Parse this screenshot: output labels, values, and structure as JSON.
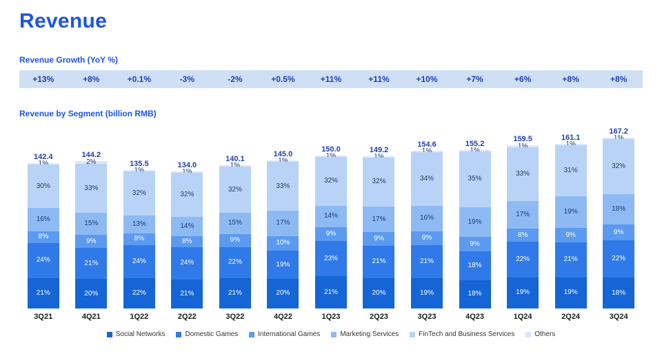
{
  "page": {
    "title": "Revenue"
  },
  "sections": {
    "growth": {
      "heading": "Revenue Growth (YoY %)"
    },
    "segment": {
      "heading": "Revenue by Segment (billion RMB)"
    }
  },
  "colors": {
    "accent_blue": "#1d53e6",
    "growth_banner_bg": "#cfe0f6",
    "growth_text": "#1c3fc0",
    "total_label": "#1e3fae"
  },
  "chart_data": {
    "type": "bar",
    "stacked": true,
    "title": "Revenue by Segment (billion RMB)",
    "unit_totals": "billion RMB",
    "unit_segments": "%",
    "grid": false,
    "legend_position": "bottom",
    "categories": [
      "3Q21",
      "4Q21",
      "1Q22",
      "2Q22",
      "3Q22",
      "4Q22",
      "1Q23",
      "2Q23",
      "3Q23",
      "4Q23",
      "1Q24",
      "2Q24",
      "3Q24"
    ],
    "totals": [
      142.4,
      144.2,
      135.5,
      134.0,
      140.1,
      145.0,
      150.0,
      149.2,
      154.6,
      155.2,
      159.5,
      161.1,
      167.2
    ],
    "growth_yoy": [
      "+13%",
      "+8%",
      "+0.1%",
      "-3%",
      "-2%",
      "+0.5%",
      "+11%",
      "+11%",
      "+10%",
      "+7%",
      "+6%",
      "+8%",
      "+8%"
    ],
    "series": [
      {
        "name": "Social Networks",
        "color": "#1565d6",
        "label_color": "#ffffff",
        "values_pct": [
          21,
          20,
          22,
          21,
          21,
          20,
          21,
          20,
          19,
          18,
          19,
          19,
          18
        ]
      },
      {
        "name": "Domestic Games",
        "color": "#2f7ae8",
        "label_color": "#ffffff",
        "values_pct": [
          24,
          21,
          24,
          24,
          22,
          19,
          23,
          21,
          21,
          18,
          22,
          21,
          22
        ]
      },
      {
        "name": "International Games",
        "color": "#5b9af0",
        "label_color": "#ffffff",
        "values_pct": [
          8,
          9,
          8,
          8,
          9,
          10,
          9,
          9,
          9,
          9,
          8,
          9,
          9
        ]
      },
      {
        "name": "Marketing Services",
        "color": "#8ebaf3",
        "label_color": "#21386e",
        "values_pct": [
          16,
          15,
          13,
          14,
          15,
          17,
          14,
          17,
          16,
          19,
          17,
          19,
          18
        ]
      },
      {
        "name": "FinTech and Business Services",
        "color": "#b9d3f7",
        "label_color": "#21386e",
        "values_pct": [
          30,
          33,
          32,
          32,
          32,
          33,
          32,
          32,
          34,
          35,
          33,
          31,
          32
        ]
      },
      {
        "name": "Others",
        "color": "#dae7fb",
        "label_color": "#21386e",
        "values_pct": [
          1,
          2,
          1,
          1,
          1,
          1,
          1,
          1,
          1,
          1,
          1,
          1,
          1
        ]
      }
    ]
  }
}
